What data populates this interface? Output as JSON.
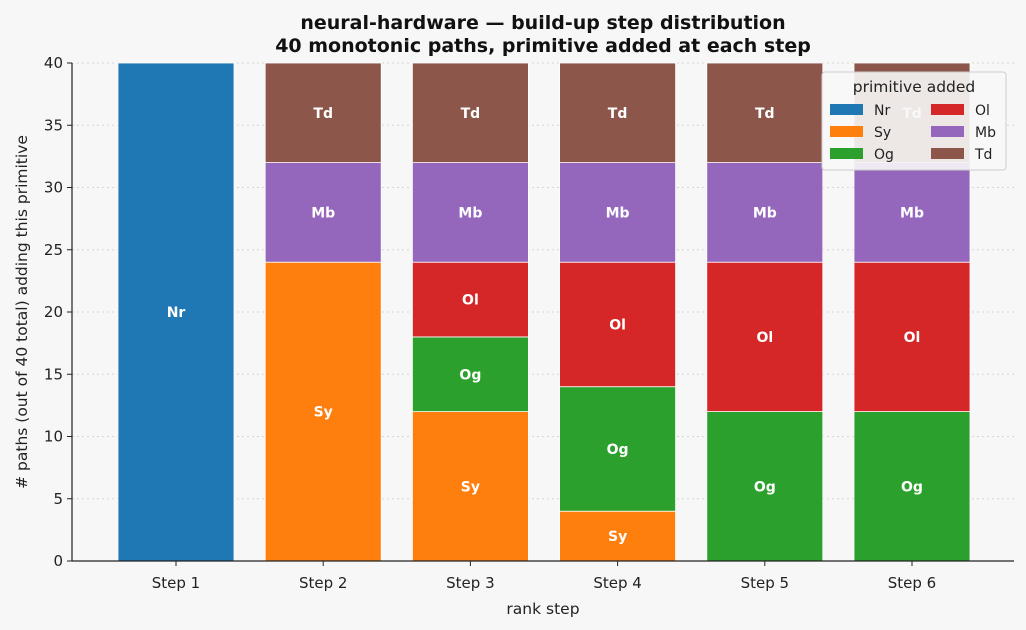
{
  "chart_data": {
    "type": "bar",
    "stacked": true,
    "title": "neural-hardware — build-up step distribution",
    "subtitle": "40 monotonic paths, primitive added at each step",
    "xlabel": "rank step",
    "ylabel": "# paths (out of 40 total) adding this primitive",
    "ylim": [
      0,
      40
    ],
    "yticks": [
      0,
      5,
      10,
      15,
      20,
      25,
      30,
      35,
      40
    ],
    "grid": "y, dotted",
    "legend_title": "primitive added",
    "legend_position": "top-right",
    "categories": [
      "Step 1",
      "Step 2",
      "Step 3",
      "Step 4",
      "Step 5",
      "Step 6"
    ],
    "series": [
      {
        "name": "Nr",
        "color": "#1f77b4",
        "values": [
          40,
          0,
          0,
          0,
          0,
          0
        ]
      },
      {
        "name": "Sy",
        "color": "#ff7f0e",
        "values": [
          0,
          24,
          12,
          4,
          0,
          0
        ]
      },
      {
        "name": "Og",
        "color": "#2ca02c",
        "values": [
          0,
          0,
          6,
          10,
          12,
          12
        ]
      },
      {
        "name": "Ol",
        "color": "#d62728",
        "values": [
          0,
          0,
          6,
          10,
          12,
          12
        ]
      },
      {
        "name": "Mb",
        "color": "#9467bd",
        "values": [
          0,
          8,
          8,
          8,
          8,
          8
        ]
      },
      {
        "name": "Td",
        "color": "#8c564b",
        "values": [
          0,
          8,
          8,
          8,
          8,
          8
        ]
      }
    ]
  }
}
